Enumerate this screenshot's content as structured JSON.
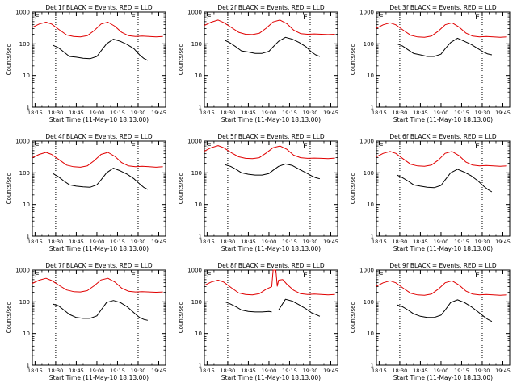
{
  "figure": {
    "panel_title_suffix": "BLACK = Events, RED = LLD",
    "xlabel": "Start Time (11-May-10 18:13:00)",
    "ylabel": "Counts/sec",
    "x_tick_labels": [
      "18:15",
      "18:30",
      "18:45",
      "19:00",
      "19:15",
      "19:30",
      "19:45"
    ],
    "y_tick_labels": [
      "1",
      "10",
      "100",
      "1000"
    ],
    "marker_label": "E",
    "colors": {
      "events": "#000000",
      "lld": "#e00000",
      "axes": "#000000"
    }
  },
  "chart_data": [
    {
      "type": "line",
      "title": "Det 1f BLACK = Events, RED = LLD",
      "xlabel": "Start Time (11-May-10 18:13:00)",
      "ylabel": "Counts/sec",
      "x_ticks": [
        "18:15",
        "18:30",
        "18:45",
        "19:00",
        "19:15",
        "19:30",
        "19:45"
      ],
      "y_scale": "log",
      "ylim": [
        1,
        1000
      ],
      "markers": [
        "18:30",
        "19:30"
      ],
      "series": [
        {
          "name": "LLD",
          "color": "#e00000",
          "x": [
            "18:13",
            "18:18",
            "18:23",
            "18:27",
            "18:33",
            "18:38",
            "18:43",
            "18:48",
            "18:53",
            "18:58",
            "19:03",
            "19:08",
            "19:13",
            "19:18",
            "19:23",
            "19:28",
            "19:33",
            "19:38",
            "19:43",
            "19:48"
          ],
          "values": [
            330,
            420,
            480,
            420,
            270,
            190,
            170,
            165,
            180,
            260,
            420,
            480,
            360,
            230,
            180,
            170,
            175,
            170,
            165,
            170
          ]
        },
        {
          "name": "Events",
          "color": "#000000",
          "x": [
            "18:28",
            "18:32",
            "18:36",
            "18:40",
            "18:45",
            "18:50",
            "18:55",
            "19:00",
            "19:03",
            "19:07",
            "19:12",
            "19:17",
            "19:22",
            "19:27",
            "19:31",
            "19:34",
            "19:37"
          ],
          "values": [
            90,
            75,
            55,
            40,
            38,
            35,
            34,
            40,
            60,
            100,
            140,
            120,
            95,
            70,
            45,
            35,
            30
          ]
        }
      ]
    },
    {
      "type": "line",
      "title": "Det 2f BLACK = Events, RED = LLD",
      "xlabel": "Start Time (11-May-10 18:13:00)",
      "ylabel": "Counts/sec",
      "x_ticks": [
        "18:15",
        "18:30",
        "18:45",
        "19:00",
        "19:15",
        "19:30",
        "19:45"
      ],
      "y_scale": "log",
      "ylim": [
        1,
        1000
      ],
      "markers": [
        "18:30",
        "19:30"
      ],
      "series": [
        {
          "name": "LLD",
          "color": "#e00000",
          "x": [
            "18:13",
            "18:18",
            "18:23",
            "18:27",
            "18:33",
            "18:38",
            "18:43",
            "18:48",
            "18:53",
            "18:58",
            "19:03",
            "19:08",
            "19:13",
            "19:18",
            "19:23",
            "19:28",
            "19:33",
            "19:38",
            "19:43",
            "19:48"
          ],
          "values": [
            380,
            480,
            560,
            470,
            320,
            230,
            200,
            195,
            215,
            310,
            490,
            560,
            430,
            270,
            210,
            200,
            205,
            200,
            195,
            200
          ]
        },
        {
          "name": "Events",
          "color": "#000000",
          "x": [
            "18:28",
            "18:32",
            "18:36",
            "18:40",
            "18:45",
            "18:50",
            "18:55",
            "19:00",
            "19:03",
            "19:07",
            "19:12",
            "19:17",
            "19:22",
            "19:27",
            "19:31",
            "19:34",
            "19:37"
          ],
          "values": [
            130,
            105,
            80,
            60,
            55,
            50,
            50,
            58,
            80,
            120,
            160,
            140,
            110,
            80,
            55,
            45,
            40
          ]
        }
      ]
    },
    {
      "type": "line",
      "title": "Det 3f BLACK = Events, RED = LLD",
      "xlabel": "Start Time (11-May-10 18:13:00)",
      "ylabel": "Counts/sec",
      "x_ticks": [
        "18:15",
        "18:30",
        "18:45",
        "19:00",
        "19:15",
        "19:30",
        "19:45"
      ],
      "y_scale": "log",
      "ylim": [
        1,
        1000
      ],
      "markers": [
        "18:30",
        "19:30"
      ],
      "series": [
        {
          "name": "LLD",
          "color": "#e00000",
          "x": [
            "18:13",
            "18:18",
            "18:23",
            "18:27",
            "18:33",
            "18:38",
            "18:43",
            "18:48",
            "18:53",
            "18:58",
            "19:03",
            "19:08",
            "19:13",
            "19:18",
            "19:23",
            "19:28",
            "19:33",
            "19:38",
            "19:43",
            "19:48"
          ],
          "values": [
            310,
            400,
            460,
            400,
            260,
            185,
            165,
            160,
            175,
            250,
            400,
            460,
            340,
            220,
            175,
            165,
            170,
            165,
            160,
            165
          ]
        },
        {
          "name": "Events",
          "color": "#000000",
          "x": [
            "18:28",
            "18:32",
            "18:36",
            "18:40",
            "18:45",
            "18:50",
            "18:55",
            "19:00",
            "19:03",
            "19:07",
            "19:12",
            "19:17",
            "19:22",
            "19:27",
            "19:31",
            "19:34",
            "19:37"
          ],
          "values": [
            100,
            85,
            65,
            50,
            45,
            40,
            40,
            47,
            70,
            110,
            150,
            120,
            95,
            70,
            55,
            48,
            45
          ]
        }
      ]
    },
    {
      "type": "line",
      "title": "Det 4f BLACK = Events, RED = LLD",
      "xlabel": "Start Time (11-May-10 18:13:00)",
      "ylabel": "Counts/sec",
      "x_ticks": [
        "18:15",
        "18:30",
        "18:45",
        "19:00",
        "19:15",
        "19:30",
        "19:45"
      ],
      "y_scale": "log",
      "ylim": [
        1,
        1000
      ],
      "markers": [
        "18:30",
        "19:30"
      ],
      "series": [
        {
          "name": "LLD",
          "color": "#e00000",
          "x": [
            "18:13",
            "18:18",
            "18:23",
            "18:27",
            "18:33",
            "18:38",
            "18:43",
            "18:48",
            "18:53",
            "18:58",
            "19:03",
            "19:08",
            "19:13",
            "19:18",
            "19:23",
            "19:28",
            "19:33",
            "19:38",
            "19:43",
            "19:48"
          ],
          "values": [
            300,
            380,
            440,
            380,
            250,
            175,
            155,
            150,
            165,
            240,
            380,
            440,
            330,
            210,
            165,
            155,
            160,
            155,
            150,
            155
          ]
        },
        {
          "name": "Events",
          "color": "#000000",
          "x": [
            "18:28",
            "18:32",
            "18:36",
            "18:40",
            "18:45",
            "18:50",
            "18:55",
            "19:00",
            "19:03",
            "19:07",
            "19:12",
            "19:17",
            "19:22",
            "19:27",
            "19:31",
            "19:34",
            "19:37"
          ],
          "values": [
            95,
            75,
            55,
            42,
            38,
            36,
            35,
            42,
            60,
            100,
            140,
            115,
            90,
            65,
            45,
            35,
            30
          ]
        }
      ]
    },
    {
      "type": "line",
      "title": "Det 5f BLACK = Events, RED = LLD",
      "xlabel": "Start Time (11-May-10 18:13:00)",
      "ylabel": "Counts/sec",
      "x_ticks": [
        "18:15",
        "18:30",
        "18:45",
        "19:00",
        "19:15",
        "19:30",
        "19:45"
      ],
      "y_scale": "log",
      "ylim": [
        1,
        1000
      ],
      "markers": [
        "18:30",
        "19:30"
      ],
      "series": [
        {
          "name": "LLD",
          "color": "#e00000",
          "x": [
            "18:13",
            "18:18",
            "18:23",
            "18:27",
            "18:33",
            "18:38",
            "18:43",
            "18:48",
            "18:53",
            "18:58",
            "19:03",
            "19:08",
            "19:13",
            "19:18",
            "19:23",
            "19:28",
            "19:33",
            "19:38",
            "19:43",
            "19:48"
          ],
          "values": [
            480,
            620,
            720,
            620,
            420,
            320,
            285,
            280,
            300,
            420,
            620,
            700,
            550,
            360,
            300,
            285,
            290,
            285,
            280,
            290
          ]
        },
        {
          "name": "Events",
          "color": "#000000",
          "x": [
            "18:28",
            "18:32",
            "18:36",
            "18:40",
            "18:45",
            "18:50",
            "18:55",
            "19:00",
            "19:03",
            "19:07",
            "19:12",
            "19:17",
            "19:22",
            "19:27",
            "19:31",
            "19:34",
            "19:37"
          ],
          "values": [
            180,
            160,
            130,
            100,
            90,
            85,
            85,
            95,
            120,
            160,
            190,
            170,
            130,
            100,
            80,
            70,
            65
          ]
        }
      ]
    },
    {
      "type": "line",
      "title": "Det 6f BLACK = Events, RED = LLD",
      "xlabel": "Start Time (11-May-10 18:13:00)",
      "ylabel": "Counts/sec",
      "x_ticks": [
        "18:15",
        "18:30",
        "18:45",
        "19:00",
        "19:15",
        "19:30",
        "19:45"
      ],
      "y_scale": "log",
      "ylim": [
        1,
        1000
      ],
      "markers": [
        "18:30",
        "19:30"
      ],
      "series": [
        {
          "name": "LLD",
          "color": "#e00000",
          "x": [
            "18:13",
            "18:18",
            "18:23",
            "18:27",
            "18:33",
            "18:38",
            "18:43",
            "18:48",
            "18:53",
            "18:58",
            "19:03",
            "19:08",
            "19:13",
            "19:18",
            "19:23",
            "19:28",
            "19:33",
            "19:38",
            "19:43",
            "19:48"
          ],
          "values": [
            320,
            410,
            470,
            410,
            265,
            185,
            165,
            160,
            175,
            250,
            410,
            470,
            350,
            220,
            175,
            165,
            170,
            165,
            160,
            165
          ]
        },
        {
          "name": "Events",
          "color": "#000000",
          "x": [
            "18:28",
            "18:32",
            "18:36",
            "18:40",
            "18:45",
            "18:50",
            "18:55",
            "19:00",
            "19:03",
            "19:07",
            "19:12",
            "19:17",
            "19:22",
            "19:27",
            "19:31",
            "19:34",
            "19:37"
          ],
          "values": [
            85,
            70,
            55,
            42,
            38,
            35,
            34,
            40,
            60,
            100,
            130,
            105,
            80,
            55,
            38,
            30,
            25
          ]
        }
      ]
    },
    {
      "type": "line",
      "title": "Det 7f BLACK = Events, RED = LLD",
      "xlabel": "Start Time (11-May-10 18:13:00)",
      "ylabel": "Counts/sec",
      "x_ticks": [
        "18:15",
        "18:30",
        "18:45",
        "19:00",
        "19:15",
        "19:30",
        "19:45"
      ],
      "y_scale": "log",
      "ylim": [
        1,
        1000
      ],
      "markers": [
        "18:30",
        "19:30"
      ],
      "series": [
        {
          "name": "LLD",
          "color": "#e00000",
          "x": [
            "18:13",
            "18:18",
            "18:23",
            "18:27",
            "18:33",
            "18:38",
            "18:43",
            "18:48",
            "18:53",
            "18:58",
            "19:03",
            "19:08",
            "19:13",
            "19:18",
            "19:23",
            "19:28",
            "19:33",
            "19:38",
            "19:43",
            "19:48"
          ],
          "values": [
            380,
            480,
            550,
            470,
            320,
            235,
            210,
            205,
            225,
            320,
            490,
            550,
            420,
            270,
            215,
            205,
            210,
            205,
            200,
            205
          ]
        },
        {
          "name": "Events",
          "color": "#000000",
          "x": [
            "18:28",
            "18:32",
            "18:36",
            "18:40",
            "18:45",
            "18:50",
            "18:55",
            "19:00",
            "19:03",
            "19:07",
            "19:12",
            "19:17",
            "19:22",
            "19:27",
            "19:31",
            "19:34",
            "19:37"
          ],
          "values": [
            85,
            75,
            55,
            40,
            32,
            30,
            30,
            36,
            55,
            95,
            110,
            95,
            70,
            45,
            32,
            28,
            26
          ]
        }
      ]
    },
    {
      "type": "line",
      "title": "Det 8f BLACK = Events, RED = LLD",
      "xlabel": "Start Time (11-May-10 18:13:00)",
      "ylabel": "Counts/sec",
      "x_ticks": [
        "18:15",
        "18:30",
        "18:45",
        "19:00",
        "19:15",
        "19:30",
        "19:45"
      ],
      "y_scale": "log",
      "ylim": [
        1,
        1000
      ],
      "markers": [
        "18:30",
        "19:30"
      ],
      "series": [
        {
          "name": "LLD",
          "color": "#e00000",
          "x": [
            "18:13",
            "18:18",
            "18:23",
            "18:27",
            "18:33",
            "18:38",
            "18:43",
            "18:48",
            "18:53",
            "18:58",
            "19:02",
            "19:03",
            "19:05",
            "19:06",
            "19:07",
            "19:10",
            "19:13",
            "19:18",
            "19:23",
            "19:28",
            "19:33",
            "19:38",
            "19:43",
            "19:48"
          ],
          "values": [
            330,
            420,
            480,
            420,
            270,
            190,
            170,
            165,
            180,
            250,
            300,
            1000,
            1000,
            310,
            480,
            500,
            360,
            230,
            180,
            170,
            175,
            170,
            165,
            170
          ]
        },
        {
          "name": "Events",
          "color": "#000000",
          "x": [
            "18:28",
            "18:32",
            "18:36",
            "18:40",
            "18:45",
            "18:50",
            "18:55",
            "19:00",
            "19:02",
            "19:06",
            "19:07",
            "19:12",
            "19:17",
            "19:22",
            "19:27",
            "19:31",
            "19:34",
            "19:37"
          ],
          "values": [
            100,
            85,
            70,
            55,
            50,
            48,
            48,
            50,
            48,
            null,
            55,
            120,
            105,
            80,
            60,
            45,
            40,
            35
          ]
        }
      ]
    },
    {
      "type": "line",
      "title": "Det 9f BLACK = Events, RED = LLD",
      "xlabel": "Start Time (11-May-10 18:13:00)",
      "ylabel": "Counts/sec",
      "x_ticks": [
        "18:15",
        "18:30",
        "18:45",
        "19:00",
        "19:15",
        "19:30",
        "19:45"
      ],
      "y_scale": "log",
      "ylim": [
        1,
        1000
      ],
      "markers": [
        "18:30",
        "19:30"
      ],
      "series": [
        {
          "name": "LLD",
          "color": "#e00000",
          "x": [
            "18:13",
            "18:18",
            "18:23",
            "18:27",
            "18:33",
            "18:38",
            "18:43",
            "18:48",
            "18:53",
            "18:58",
            "19:03",
            "19:08",
            "19:13",
            "19:18",
            "19:23",
            "19:28",
            "19:33",
            "19:38",
            "19:43",
            "19:48"
          ],
          "values": [
            310,
            400,
            460,
            400,
            260,
            185,
            165,
            160,
            175,
            250,
            400,
            460,
            340,
            220,
            175,
            165,
            170,
            165,
            160,
            165
          ]
        },
        {
          "name": "Events",
          "color": "#000000",
          "x": [
            "18:28",
            "18:32",
            "18:36",
            "18:40",
            "18:45",
            "18:50",
            "18:55",
            "19:00",
            "19:03",
            "19:07",
            "19:12",
            "19:17",
            "19:22",
            "19:27",
            "19:31",
            "19:34",
            "19:37"
          ],
          "values": [
            80,
            70,
            55,
            42,
            35,
            32,
            32,
            38,
            55,
            95,
            115,
            95,
            70,
            48,
            35,
            28,
            24
          ]
        }
      ]
    }
  ]
}
